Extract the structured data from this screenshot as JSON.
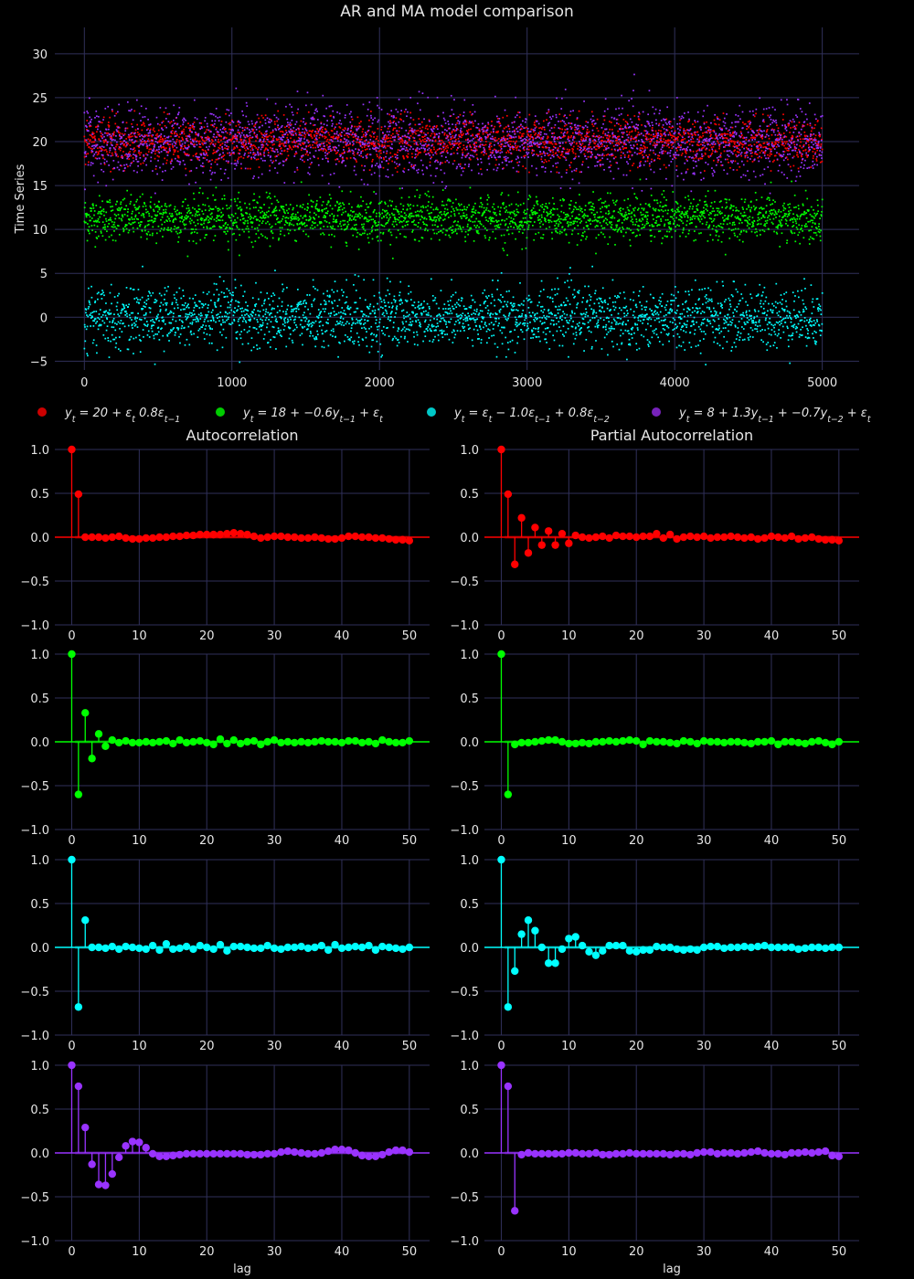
{
  "figure": {
    "title": "AR and MA model comparison",
    "background": "#000000",
    "grid_color": "#30305a",
    "text_color": "#e6e6e6"
  },
  "legend": [
    {
      "tex": "y_t = 20 + ε_t 0.8ε_{t-1}",
      "color": "#cc0000"
    },
    {
      "tex": "y_t = 18 + -0.6y_{t-1} + ε_t",
      "color": "#00cc00"
    },
    {
      "tex": "y_t = ε_t - 1.0ε_{t-1} + 0.8ε_{t-2}",
      "color": "#00c8c8"
    },
    {
      "tex": "y_t = 8 + 1.3y_{t-1} + -0.7y_{t-2} + ε_t",
      "color": "#7722bb"
    }
  ],
  "chart_data": [
    {
      "type": "scatter",
      "id": "timeseries",
      "title": "AR and MA model comparison",
      "ylabel": "Time Series",
      "xlim": [
        -200,
        5250
      ],
      "ylim": [
        -6,
        33
      ],
      "xticks": [
        0,
        1000,
        2000,
        3000,
        4000,
        5000
      ],
      "yticks": [
        -5,
        0,
        5,
        10,
        15,
        20,
        25,
        30
      ],
      "n_points": 5000,
      "grid": true,
      "series": [
        {
          "name": "y_t = 20 + ε_t 0.8ε_{t-1}",
          "color": "#ff0000",
          "mean": 20,
          "sd": 1.3,
          "min": 16.5,
          "max": 23.5
        },
        {
          "name": "y_t = 18 + -0.6y_{t-1} + ε_t",
          "color": "#00ff00",
          "mean": 11.3,
          "sd": 1.25,
          "min": 6.5,
          "max": 16
        },
        {
          "name": "y_t = ε_t - 1.0ε_{t-1} + 0.8ε_{t-2}",
          "color": "#00ffff",
          "mean": 0,
          "sd": 1.7,
          "min": -5.5,
          "max": 6
        },
        {
          "name": "y_t = 8 + 1.3y_{t-1} + -0.7y_{t-2} + ε_t",
          "color": "#9933ff",
          "mean": 20,
          "sd": 2.0,
          "min": 14,
          "max": 31
        }
      ]
    },
    {
      "type": "stem",
      "id": "acf-1",
      "title": "Autocorrelation",
      "xlabel": "",
      "color": "#ff0000",
      "ylim": [
        -1,
        1
      ],
      "yticks": [
        -1.0,
        -0.5,
        0.0,
        0.5,
        1.0
      ],
      "xticks": [
        0,
        10,
        20,
        30,
        40,
        50
      ],
      "values": [
        1.0,
        0.49,
        0.0,
        0.0,
        0.0,
        -0.01,
        0.0,
        0.01,
        -0.01,
        -0.02,
        -0.02,
        -0.01,
        -0.01,
        0.0,
        0.0,
        0.01,
        0.01,
        0.02,
        0.02,
        0.03,
        0.03,
        0.03,
        0.03,
        0.04,
        0.05,
        0.04,
        0.03,
        0.01,
        -0.01,
        0.0,
        0.01,
        0.01,
        0.0,
        0.0,
        -0.01,
        -0.01,
        0.0,
        -0.01,
        -0.02,
        -0.02,
        -0.01,
        0.01,
        0.01,
        0.0,
        0.0,
        -0.01,
        -0.01,
        -0.02,
        -0.03,
        -0.03,
        -0.04
      ]
    },
    {
      "type": "stem",
      "id": "pacf-1",
      "title": "Partial Autocorrelation",
      "xlabel": "",
      "color": "#ff0000",
      "ylim": [
        -1,
        1
      ],
      "yticks": [
        -1.0,
        -0.5,
        0.0,
        0.5,
        1.0
      ],
      "xticks": [
        0,
        10,
        20,
        30,
        40,
        50
      ],
      "values": [
        1.0,
        0.49,
        -0.31,
        0.22,
        -0.18,
        0.11,
        -0.09,
        0.07,
        -0.09,
        0.04,
        -0.07,
        0.02,
        0.0,
        -0.01,
        0.0,
        0.01,
        -0.01,
        0.02,
        0.01,
        0.01,
        0.0,
        0.01,
        0.01,
        0.04,
        -0.01,
        0.03,
        -0.02,
        0.0,
        0.01,
        0.0,
        0.01,
        -0.01,
        0.0,
        0.0,
        0.01,
        0.0,
        -0.01,
        0.0,
        -0.02,
        -0.01,
        0.01,
        0.0,
        -0.01,
        0.01,
        -0.02,
        -0.01,
        0.0,
        -0.02,
        -0.03,
        -0.03,
        -0.04
      ]
    },
    {
      "type": "stem",
      "id": "acf-2",
      "title": "",
      "xlabel": "",
      "color": "#00ff00",
      "ylim": [
        -1,
        1
      ],
      "yticks": [
        -1.0,
        -0.5,
        0.0,
        0.5,
        1.0
      ],
      "xticks": [
        0,
        10,
        20,
        30,
        40,
        50
      ],
      "values": [
        1.0,
        -0.6,
        0.33,
        -0.19,
        0.09,
        -0.05,
        0.02,
        -0.01,
        0.01,
        -0.01,
        -0.01,
        0.0,
        -0.01,
        0.0,
        0.01,
        -0.02,
        0.02,
        -0.01,
        0.0,
        0.01,
        -0.01,
        -0.03,
        0.03,
        -0.02,
        0.02,
        -0.02,
        0.0,
        0.01,
        -0.03,
        0.0,
        0.02,
        -0.01,
        0.0,
        -0.01,
        0.0,
        -0.01,
        0.0,
        0.01,
        0.0,
        0.0,
        -0.01,
        0.01,
        0.01,
        -0.01,
        0.0,
        -0.02,
        0.02,
        0.0,
        -0.01,
        -0.01,
        0.01
      ]
    },
    {
      "type": "stem",
      "id": "pacf-2",
      "title": "",
      "xlabel": "",
      "color": "#00ff00",
      "ylim": [
        -1,
        1
      ],
      "yticks": [
        -1.0,
        -0.5,
        0.0,
        0.5,
        1.0
      ],
      "xticks": [
        0,
        10,
        20,
        30,
        40,
        50
      ],
      "values": [
        1.0,
        -0.6,
        -0.03,
        -0.01,
        -0.01,
        0.0,
        0.01,
        0.02,
        0.02,
        0.0,
        -0.02,
        -0.02,
        -0.01,
        -0.02,
        0.0,
        0.0,
        0.01,
        0.0,
        0.01,
        0.02,
        0.01,
        -0.03,
        0.01,
        0.0,
        0.0,
        -0.01,
        -0.02,
        0.01,
        0.0,
        -0.02,
        0.01,
        0.0,
        0.0,
        -0.01,
        0.0,
        0.0,
        -0.01,
        -0.02,
        0.0,
        0.0,
        0.01,
        -0.03,
        0.0,
        0.0,
        -0.01,
        -0.02,
        0.0,
        0.01,
        -0.01,
        -0.03,
        0.0
      ]
    },
    {
      "type": "stem",
      "id": "acf-3",
      "title": "",
      "xlabel": "",
      "color": "#00ffff",
      "ylim": [
        -1,
        1
      ],
      "yticks": [
        -1.0,
        -0.5,
        0.0,
        0.5,
        1.0
      ],
      "xticks": [
        0,
        10,
        20,
        30,
        40,
        50
      ],
      "values": [
        1.0,
        -0.68,
        0.31,
        0.0,
        0.0,
        -0.01,
        0.01,
        -0.02,
        0.01,
        0.0,
        -0.01,
        -0.02,
        0.02,
        -0.03,
        0.04,
        -0.02,
        -0.01,
        0.01,
        -0.02,
        0.02,
        0.0,
        -0.02,
        0.03,
        -0.04,
        0.01,
        0.01,
        0.0,
        -0.01,
        -0.01,
        0.02,
        -0.01,
        -0.02,
        0.0,
        0.0,
        0.01,
        -0.01,
        0.0,
        0.02,
        -0.03,
        0.03,
        -0.01,
        0.0,
        0.01,
        0.0,
        0.02,
        -0.03,
        0.01,
        0.0,
        -0.01,
        -0.02,
        0.0
      ]
    },
    {
      "type": "stem",
      "id": "pacf-3",
      "title": "",
      "xlabel": "",
      "color": "#00ffff",
      "ylim": [
        -1,
        1
      ],
      "yticks": [
        -1.0,
        -0.5,
        0.0,
        0.5,
        1.0
      ],
      "xticks": [
        0,
        10,
        20,
        30,
        40,
        50
      ],
      "values": [
        1.0,
        -0.68,
        -0.27,
        0.15,
        0.31,
        0.19,
        0.0,
        -0.18,
        -0.18,
        -0.02,
        0.1,
        0.12,
        0.02,
        -0.05,
        -0.09,
        -0.04,
        0.02,
        0.02,
        0.02,
        -0.04,
        -0.05,
        -0.03,
        -0.03,
        0.01,
        0.0,
        0.0,
        -0.02,
        -0.03,
        -0.02,
        -0.03,
        0.0,
        0.01,
        0.01,
        -0.01,
        0.0,
        0.0,
        0.01,
        0.0,
        0.01,
        0.02,
        0.0,
        0.0,
        0.0,
        0.0,
        -0.02,
        -0.01,
        0.0,
        0.0,
        -0.01,
        0.0,
        0.0
      ]
    },
    {
      "type": "stem",
      "id": "acf-4",
      "title": "",
      "xlabel": "lag",
      "color": "#9933ff",
      "ylim": [
        -1,
        1
      ],
      "yticks": [
        -1.0,
        -0.5,
        0.0,
        0.5,
        1.0
      ],
      "xticks": [
        0,
        10,
        20,
        30,
        40,
        50
      ],
      "values": [
        1.0,
        0.76,
        0.29,
        -0.13,
        -0.36,
        -0.37,
        -0.24,
        -0.05,
        0.08,
        0.13,
        0.12,
        0.06,
        -0.01,
        -0.04,
        -0.04,
        -0.03,
        -0.02,
        -0.01,
        -0.01,
        -0.01,
        -0.01,
        -0.01,
        -0.01,
        -0.01,
        -0.01,
        -0.01,
        -0.02,
        -0.02,
        -0.02,
        -0.01,
        -0.01,
        0.01,
        0.02,
        0.01,
        0.0,
        -0.01,
        -0.01,
        0.0,
        0.02,
        0.04,
        0.04,
        0.03,
        0.0,
        -0.03,
        -0.04,
        -0.04,
        -0.02,
        0.01,
        0.03,
        0.03,
        0.01
      ]
    },
    {
      "type": "stem",
      "id": "pacf-4",
      "title": "",
      "xlabel": "lag",
      "color": "#9933ff",
      "ylim": [
        -1,
        1
      ],
      "yticks": [
        -1.0,
        -0.5,
        0.0,
        0.5,
        1.0
      ],
      "xticks": [
        0,
        10,
        20,
        30,
        40,
        50
      ],
      "values": [
        1.0,
        0.76,
        -0.66,
        -0.02,
        0.0,
        -0.01,
        -0.01,
        -0.01,
        -0.01,
        -0.01,
        0.0,
        0.0,
        -0.01,
        -0.01,
        0.0,
        -0.02,
        -0.02,
        -0.01,
        -0.01,
        0.0,
        -0.01,
        -0.01,
        -0.01,
        -0.01,
        -0.01,
        -0.02,
        -0.01,
        -0.01,
        -0.02,
        0.0,
        0.01,
        0.01,
        -0.01,
        0.0,
        0.0,
        -0.01,
        0.0,
        0.01,
        0.02,
        0.0,
        -0.01,
        -0.01,
        -0.02,
        0.0,
        0.0,
        0.01,
        0.0,
        0.01,
        0.02,
        -0.03,
        -0.04
      ]
    }
  ]
}
